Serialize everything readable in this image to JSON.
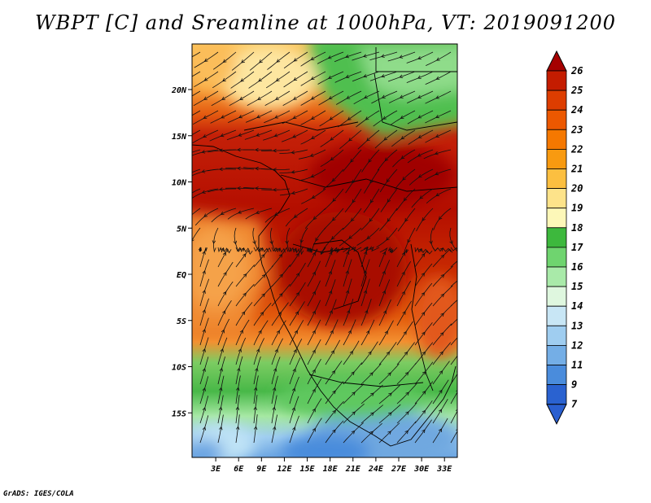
{
  "title": "WBPT [C] and Sreamline at 1000hPa, VT: 2019091200",
  "footer": "GrADS: IGES/COLA",
  "lat_labels": [
    {
      "text": "20N",
      "lat": 20
    },
    {
      "text": "15N",
      "lat": 15
    },
    {
      "text": "10N",
      "lat": 10
    },
    {
      "text": "5N",
      "lat": 5
    },
    {
      "text": "EQ",
      "lat": 0
    },
    {
      "text": "5S",
      "lat": -5
    },
    {
      "text": "10S",
      "lat": -10
    },
    {
      "text": "15S",
      "lat": -15
    }
  ],
  "lon_labels": [
    {
      "text": "3E",
      "lon": 3
    },
    {
      "text": "6E",
      "lon": 6
    },
    {
      "text": "9E",
      "lon": 9
    },
    {
      "text": "12E",
      "lon": 12
    },
    {
      "text": "15E",
      "lon": 15
    },
    {
      "text": "18E",
      "lon": 18
    },
    {
      "text": "21E",
      "lon": 21
    },
    {
      "text": "24E",
      "lon": 24
    },
    {
      "text": "27E",
      "lon": 27
    },
    {
      "text": "30E",
      "lon": 30
    },
    {
      "text": "33E",
      "lon": 33
    }
  ],
  "colorbar": {
    "labels": [
      "26",
      "25",
      "24",
      "23",
      "22",
      "21",
      "20",
      "19",
      "18",
      "17",
      "16",
      "15",
      "14",
      "13",
      "12",
      "11",
      "9",
      "7"
    ],
    "colors": [
      "#a50000",
      "#c41c00",
      "#dd3d00",
      "#ec5800",
      "#f57800",
      "#f89a10",
      "#fcbf40",
      "#fde38a",
      "#fdf7b8",
      "#3db83d",
      "#6fd46f",
      "#a9eaa9",
      "#dff7df",
      "#c8e6f5",
      "#9fcdf0",
      "#74aee6",
      "#4a8cdc",
      "#2a62d0"
    ]
  }
}
